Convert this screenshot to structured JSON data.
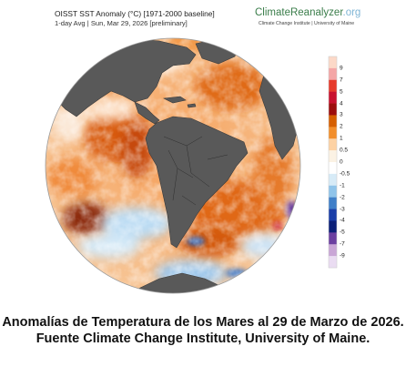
{
  "header": {
    "title": "OISST SST Anomaly (°C) [1971-2000 baseline]",
    "subtitle": "1-day Avg | Sun, Mar 29, 2026 [preliminary]"
  },
  "brand": {
    "name_part1": "ClimateReanalyzer",
    "name_part2": ".org",
    "tagline": "Climate Change Institute | University of Maine"
  },
  "colorbar": {
    "labels": [
      "9",
      "7",
      "5",
      "4",
      "3",
      "2",
      "1",
      "0.5",
      "0",
      "-0.5",
      "-1",
      "-2",
      "-3",
      "-4",
      "-5",
      "-7",
      "-9"
    ],
    "colors": [
      "#fcd9c8",
      "#f4a6a6",
      "#e63a2b",
      "#c8102e",
      "#9c0d0d",
      "#d55e00",
      "#f28e2b",
      "#fdd2a4",
      "#fbf2e4",
      "#ffffff",
      "#d7ebf7",
      "#8fc4ea",
      "#3f7fc8",
      "#1a3ea8",
      "#0b1f78",
      "#6b3fa0",
      "#c9a6d6",
      "#eadcf2"
    ]
  },
  "caption": {
    "line1": "Anomalías de Temperatura de los Mares al 29 de Marzo de 2026.",
    "line2": "Fuente Climate Change Institute, University of Maine."
  }
}
